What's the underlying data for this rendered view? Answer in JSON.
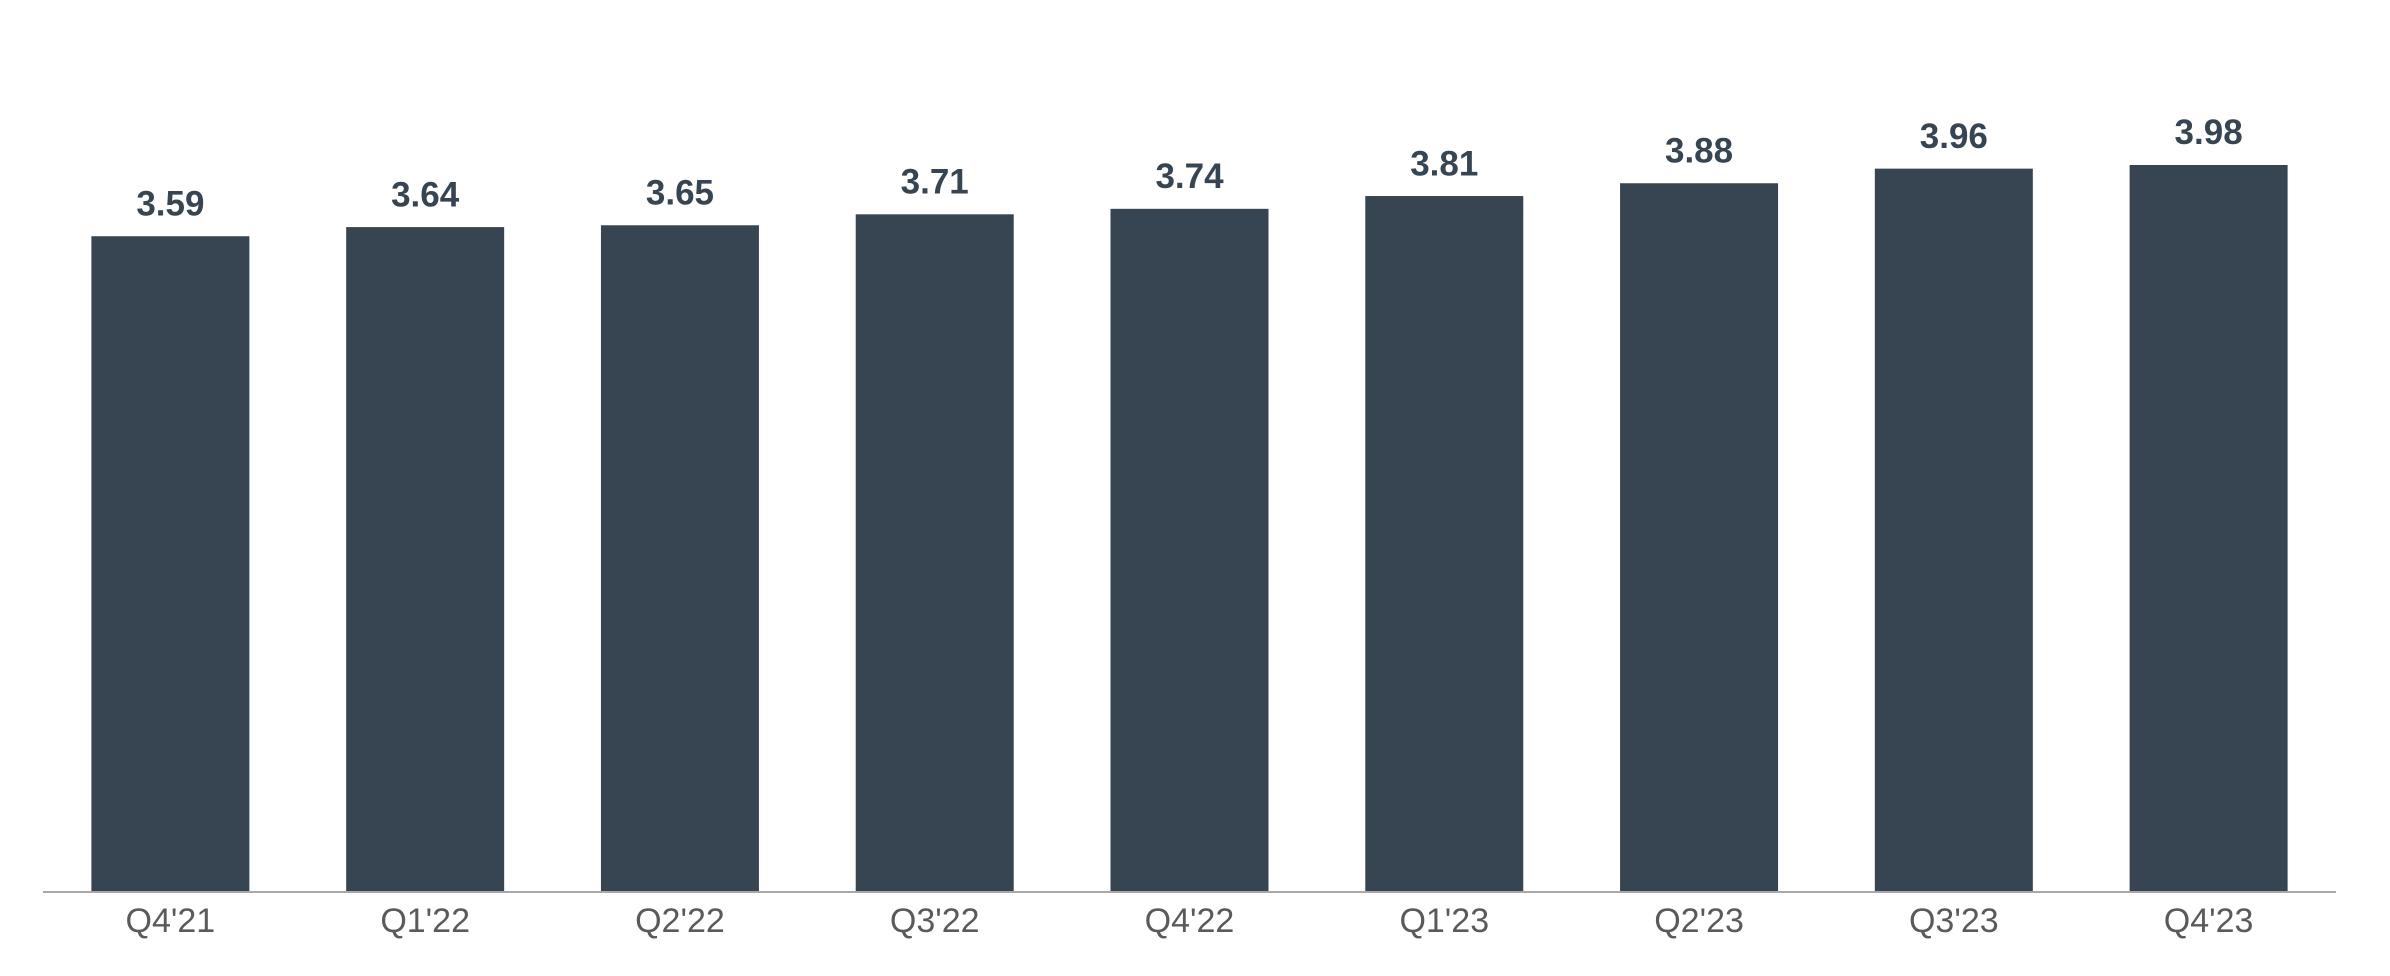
{
  "chart_data": {
    "type": "bar",
    "categories": [
      "Q4'21",
      "Q1'22",
      "Q2'22",
      "Q3'22",
      "Q4'22",
      "Q1'23",
      "Q2'23",
      "Q3'23",
      "Q4'23"
    ],
    "values": [
      3.59,
      3.64,
      3.65,
      3.71,
      3.74,
      3.81,
      3.88,
      3.96,
      3.98
    ],
    "color": "#374553",
    "ylim": [
      0,
      4.5
    ]
  }
}
